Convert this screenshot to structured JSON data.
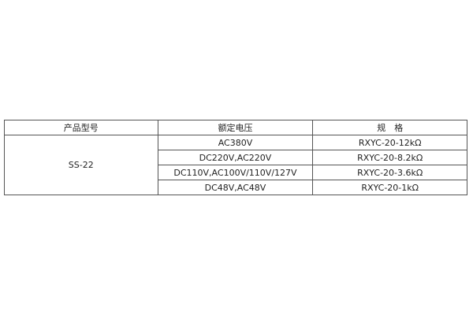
{
  "table": {
    "headers": [
      "产品型号",
      "额定电压",
      "规　格"
    ],
    "model": "SS-22",
    "rows": [
      {
        "voltage": "AC380V",
        "spec": "RXYC-20-12kΩ"
      },
      {
        "voltage": "DC220V,AC220V",
        "spec": "RXYC-20-8.2kΩ"
      },
      {
        "voltage": "DC110V,AC100V/110V/127V",
        "spec": "RXYC-20-3.6kΩ"
      },
      {
        "voltage": "DC48V,AC48V",
        "spec": "RXYC-20-1kΩ"
      }
    ]
  }
}
